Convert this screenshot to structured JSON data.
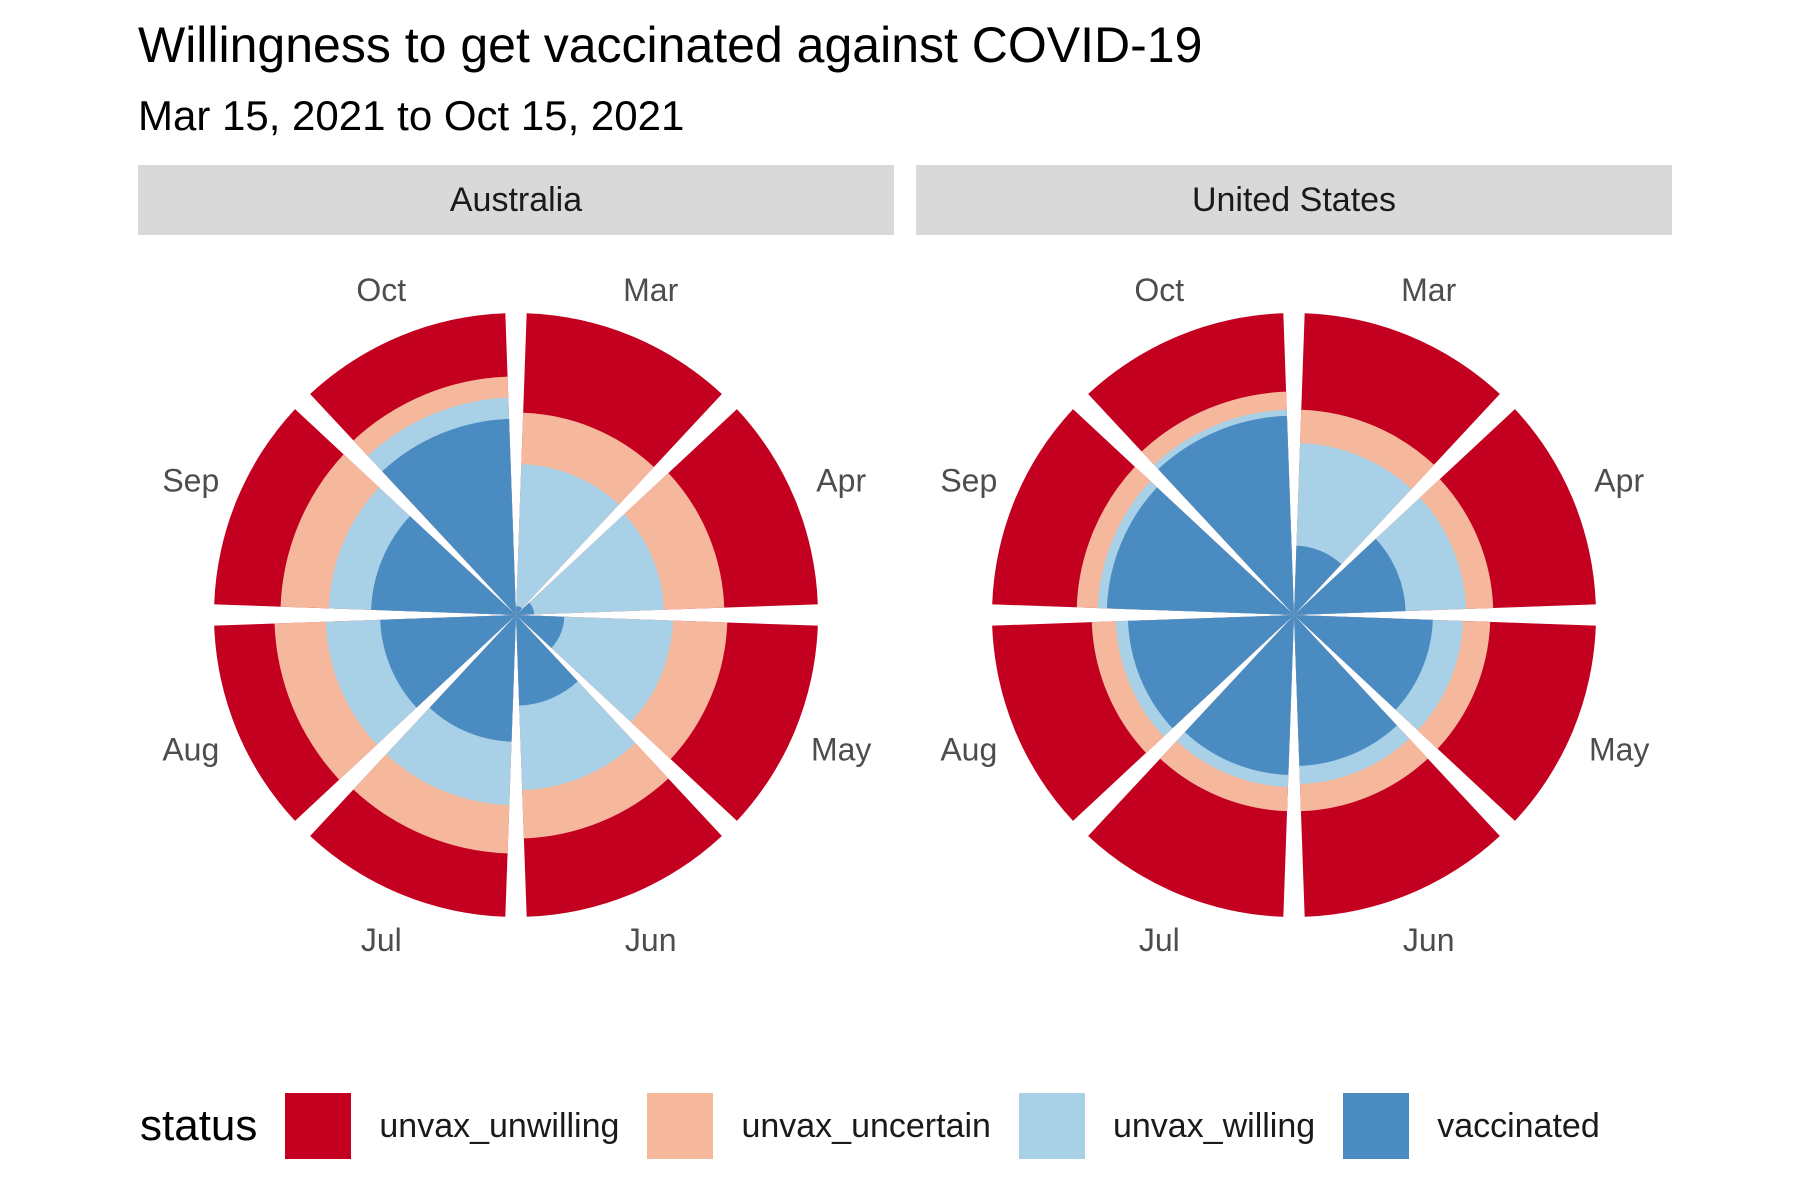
{
  "title": "Willingness to get vaccinated against COVID-19",
  "subtitle": "Mar 15, 2021 to Oct 15, 2021",
  "legend": {
    "title": "status",
    "items": [
      {
        "key": "unvax_unwilling",
        "label": "unvax_unwilling",
        "color": "#c40020"
      },
      {
        "key": "unvax_uncertain",
        "label": "unvax_uncertain",
        "color": "#f5b89c"
      },
      {
        "key": "unvax_willing",
        "label": "unvax_willing",
        "color": "#a8d0e6"
      },
      {
        "key": "vaccinated",
        "label": "vaccinated",
        "color": "#4a8cc2"
      }
    ]
  },
  "chart_data": [
    {
      "type": "bar",
      "coord": "polar",
      "position": "stack",
      "panel": "Australia",
      "categories": [
        "Mar",
        "Apr",
        "May",
        "Jun",
        "Jul",
        "Aug",
        "Sep",
        "Oct"
      ],
      "series": [
        {
          "name": "vaccinated",
          "values": [
            3,
            6,
            16,
            30,
            42,
            45,
            48,
            65
          ]
        },
        {
          "name": "unvax_willing",
          "values": [
            47,
            43,
            36,
            28,
            21,
            18,
            14,
            7
          ]
        },
        {
          "name": "unvax_uncertain",
          "values": [
            17,
            20,
            18,
            16,
            16,
            17,
            16,
            7
          ]
        },
        {
          "name": "unvax_unwilling",
          "values": [
            33,
            31,
            30,
            26,
            21,
            20,
            22,
            21
          ]
        }
      ],
      "ylim": [
        0,
        100
      ]
    },
    {
      "type": "bar",
      "coord": "polar",
      "position": "stack",
      "panel": "United States",
      "categories": [
        "Mar",
        "Apr",
        "May",
        "Jun",
        "Jul",
        "Aug",
        "Sep",
        "Oct"
      ],
      "series": [
        {
          "name": "vaccinated",
          "values": [
            23,
            37,
            46,
            50,
            53,
            55,
            62,
            66
          ]
        },
        {
          "name": "unvax_willing",
          "values": [
            34,
            20,
            10,
            6,
            4,
            4,
            3,
            2
          ]
        },
        {
          "name": "unvax_uncertain",
          "values": [
            11,
            9,
            9,
            9,
            8,
            8,
            7,
            6
          ]
        },
        {
          "name": "unvax_unwilling",
          "values": [
            32,
            34,
            35,
            35,
            35,
            33,
            28,
            26
          ]
        }
      ],
      "ylim": [
        0,
        100
      ]
    }
  ]
}
